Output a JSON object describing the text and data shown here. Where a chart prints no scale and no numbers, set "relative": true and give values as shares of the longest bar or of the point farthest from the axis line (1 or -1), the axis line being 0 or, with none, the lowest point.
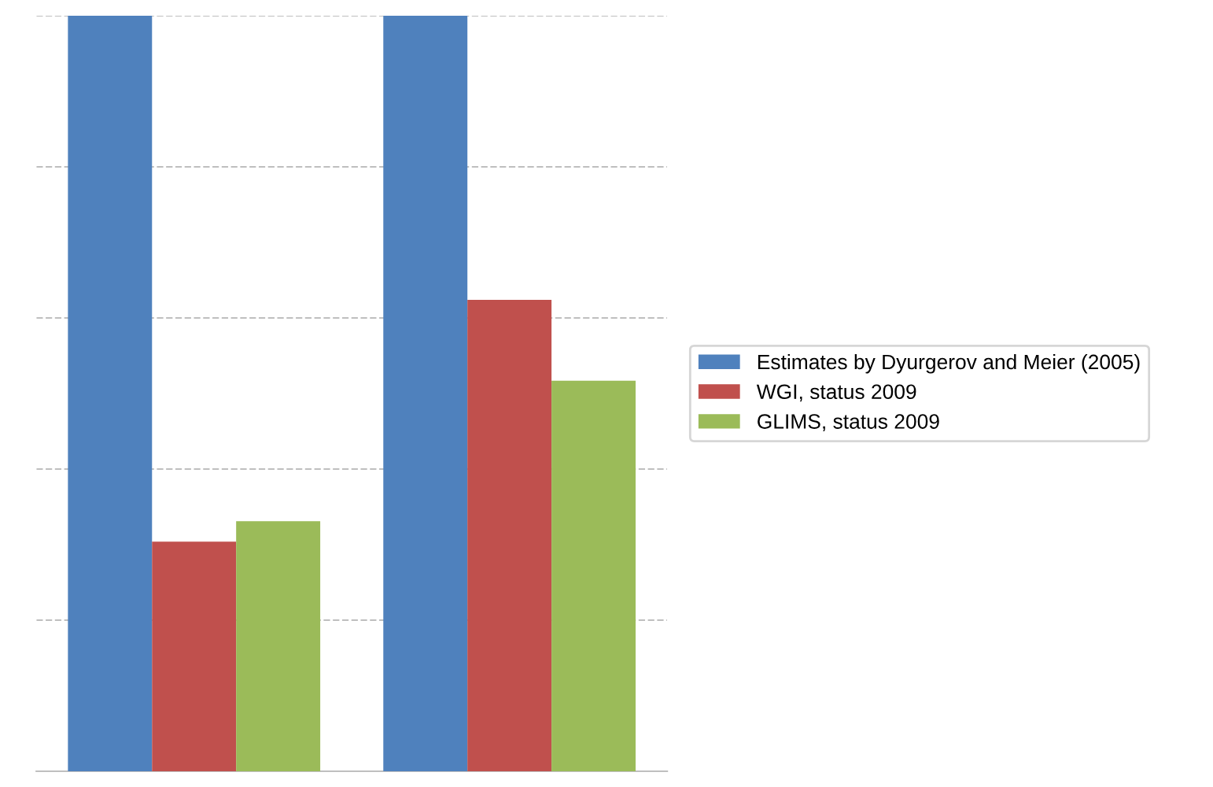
{
  "chart_data": {
    "type": "bar",
    "categories": [
      null,
      null
    ],
    "relative": true,
    "series": [
      {
        "name": "Estimates by Dyurgerov and Meier (2005)",
        "color": "#4f81bd",
        "values": [
          1,
          1
        ]
      },
      {
        "name": "WGI, status 2009",
        "color": "#c0504d",
        "values": [
          0.304,
          0.624
        ]
      },
      {
        "name": "GLIMS, status 2009",
        "color": "#9bbb59",
        "values": [
          0.331,
          0.517
        ]
      }
    ],
    "grid": "y",
    "legend": "right"
  }
}
